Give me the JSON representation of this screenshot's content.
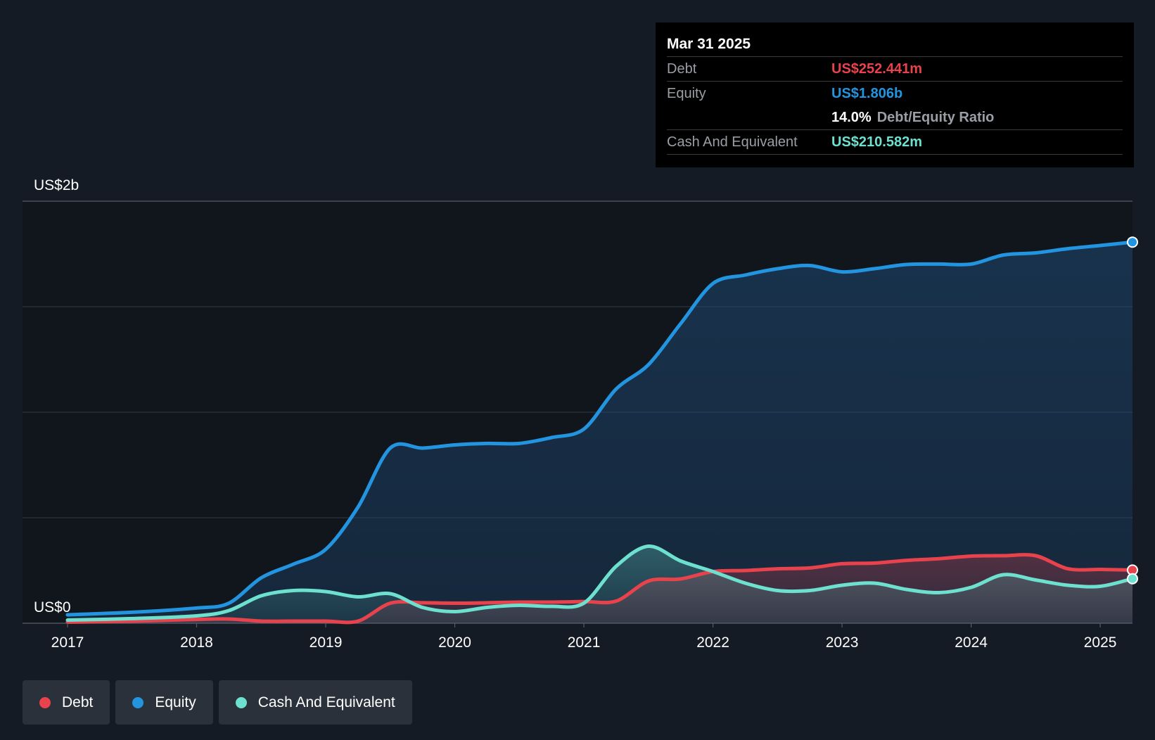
{
  "colors": {
    "debt": "#e8424c",
    "equity": "#2394df",
    "cash": "#6de0cf",
    "background": "#151b24",
    "plot_background": "#11151c"
  },
  "tooltip": {
    "date": "Mar 31 2025",
    "debt_label": "Debt",
    "debt_value": "US$252.441m",
    "equity_label": "Equity",
    "equity_value": "US$1.806b",
    "ratio_value": "14.0%",
    "ratio_label": "Debt/Equity Ratio",
    "cash_label": "Cash And Equivalent",
    "cash_value": "US$210.582m"
  },
  "legend": [
    {
      "label": "Debt",
      "color": "#e8424c"
    },
    {
      "label": "Equity",
      "color": "#2394df"
    },
    {
      "label": "Cash And Equivalent",
      "color": "#6de0cf"
    }
  ],
  "chart_data": {
    "type": "area",
    "y_top_label": "US$2b",
    "y_bottom_label": "US$0",
    "ylim": [
      0,
      2000
    ],
    "xlim": [
      2017.0,
      2025.25
    ],
    "x_ticks": [
      "2017",
      "2018",
      "2019",
      "2020",
      "2021",
      "2022",
      "2023",
      "2024",
      "2025"
    ],
    "x_tick_values": [
      2017,
      2018,
      2019,
      2020,
      2021,
      2022,
      2023,
      2024,
      2025
    ],
    "grid": true,
    "units": "US$ millions",
    "series": [
      {
        "name": "Equity",
        "color": "#2394df",
        "x": [
          2017.0,
          2017.5,
          2018.0,
          2018.25,
          2018.5,
          2018.75,
          2019.0,
          2019.25,
          2019.5,
          2019.75,
          2020.0,
          2020.25,
          2020.5,
          2020.75,
          2021.0,
          2021.25,
          2021.5,
          2021.75,
          2022.0,
          2022.25,
          2022.5,
          2022.75,
          2023.0,
          2023.25,
          2023.5,
          2023.75,
          2024.0,
          2024.25,
          2024.5,
          2024.75,
          2025.0,
          2025.25
        ],
        "values": [
          40,
          52,
          72,
          95,
          215,
          280,
          350,
          550,
          830,
          830,
          845,
          852,
          852,
          880,
          920,
          1110,
          1225,
          1420,
          1610,
          1650,
          1680,
          1695,
          1665,
          1680,
          1700,
          1702,
          1702,
          1745,
          1755,
          1775,
          1790,
          1806
        ]
      },
      {
        "name": "Debt",
        "color": "#e8424c",
        "x": [
          2017.0,
          2017.5,
          2018.0,
          2018.25,
          2018.5,
          2018.75,
          2019.0,
          2019.25,
          2019.5,
          2019.75,
          2020.0,
          2020.25,
          2020.5,
          2020.75,
          2021.0,
          2021.25,
          2021.5,
          2021.75,
          2022.0,
          2022.25,
          2022.5,
          2022.75,
          2023.0,
          2023.25,
          2023.5,
          2023.75,
          2024.0,
          2024.25,
          2024.5,
          2024.75,
          2025.0,
          2025.25
        ],
        "values": [
          5,
          10,
          18,
          20,
          10,
          10,
          10,
          10,
          95,
          97,
          95,
          97,
          100,
          100,
          103,
          105,
          200,
          210,
          245,
          250,
          258,
          262,
          282,
          285,
          298,
          306,
          318,
          320,
          320,
          258,
          255,
          252
        ]
      },
      {
        "name": "Cash And Equivalent",
        "color": "#6de0cf",
        "x": [
          2017.0,
          2017.5,
          2018.0,
          2018.25,
          2018.5,
          2018.75,
          2019.0,
          2019.25,
          2019.5,
          2019.75,
          2020.0,
          2020.25,
          2020.5,
          2020.75,
          2021.0,
          2021.25,
          2021.5,
          2021.75,
          2022.0,
          2022.25,
          2022.5,
          2022.75,
          2023.0,
          2023.25,
          2023.5,
          2023.75,
          2024.0,
          2024.25,
          2024.5,
          2024.75,
          2025.0,
          2025.25
        ],
        "values": [
          15,
          22,
          35,
          60,
          130,
          155,
          150,
          125,
          140,
          75,
          55,
          75,
          85,
          80,
          95,
          270,
          365,
          295,
          245,
          190,
          155,
          155,
          180,
          190,
          160,
          145,
          170,
          230,
          205,
          180,
          175,
          211
        ]
      }
    ]
  }
}
